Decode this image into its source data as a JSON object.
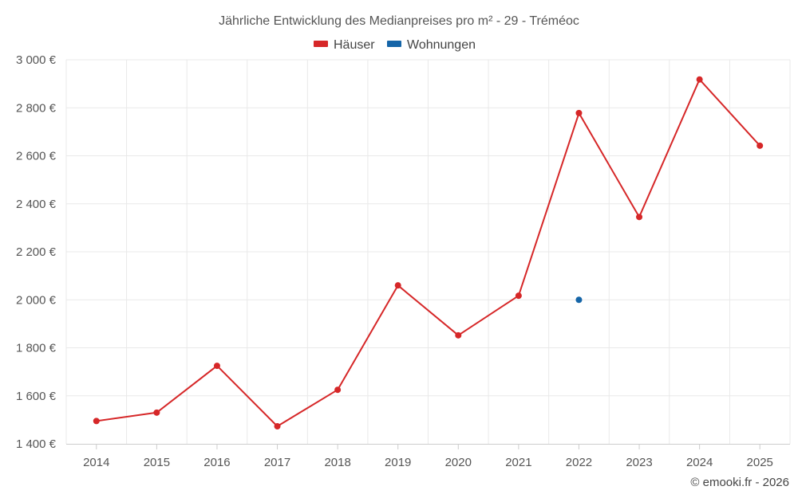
{
  "chart_data": {
    "type": "line",
    "title": "Jährliche Entwicklung des Medianpreises pro m² - 29 - Tréméoc",
    "xlabel": "",
    "ylabel": "",
    "categories": [
      "2014",
      "2015",
      "2016",
      "2017",
      "2018",
      "2019",
      "2020",
      "2021",
      "2022",
      "2023",
      "2024",
      "2025"
    ],
    "ylim": [
      1400,
      3000
    ],
    "yticks": [
      1400,
      1600,
      1800,
      2000,
      2200,
      2400,
      2600,
      2800,
      3000
    ],
    "ytick_labels": [
      "1 400 €",
      "1 600 €",
      "1 800 €",
      "2 000 €",
      "2 200 €",
      "2 400 €",
      "2 600 €",
      "2 800 €",
      "3 000 €"
    ],
    "grid": true,
    "legend_position": "top-center",
    "series": [
      {
        "name": "Häuser",
        "color": "#d62728",
        "values": [
          1495,
          1530,
          1725,
          1473,
          1625,
          2060,
          1852,
          2017,
          2778,
          2345,
          2918,
          2642
        ]
      },
      {
        "name": "Wohnungen",
        "color": "#1565a8",
        "values": [
          null,
          null,
          null,
          null,
          null,
          null,
          null,
          null,
          2000,
          null,
          null,
          null
        ]
      }
    ]
  },
  "credit": "© emooki.fr - 2026"
}
